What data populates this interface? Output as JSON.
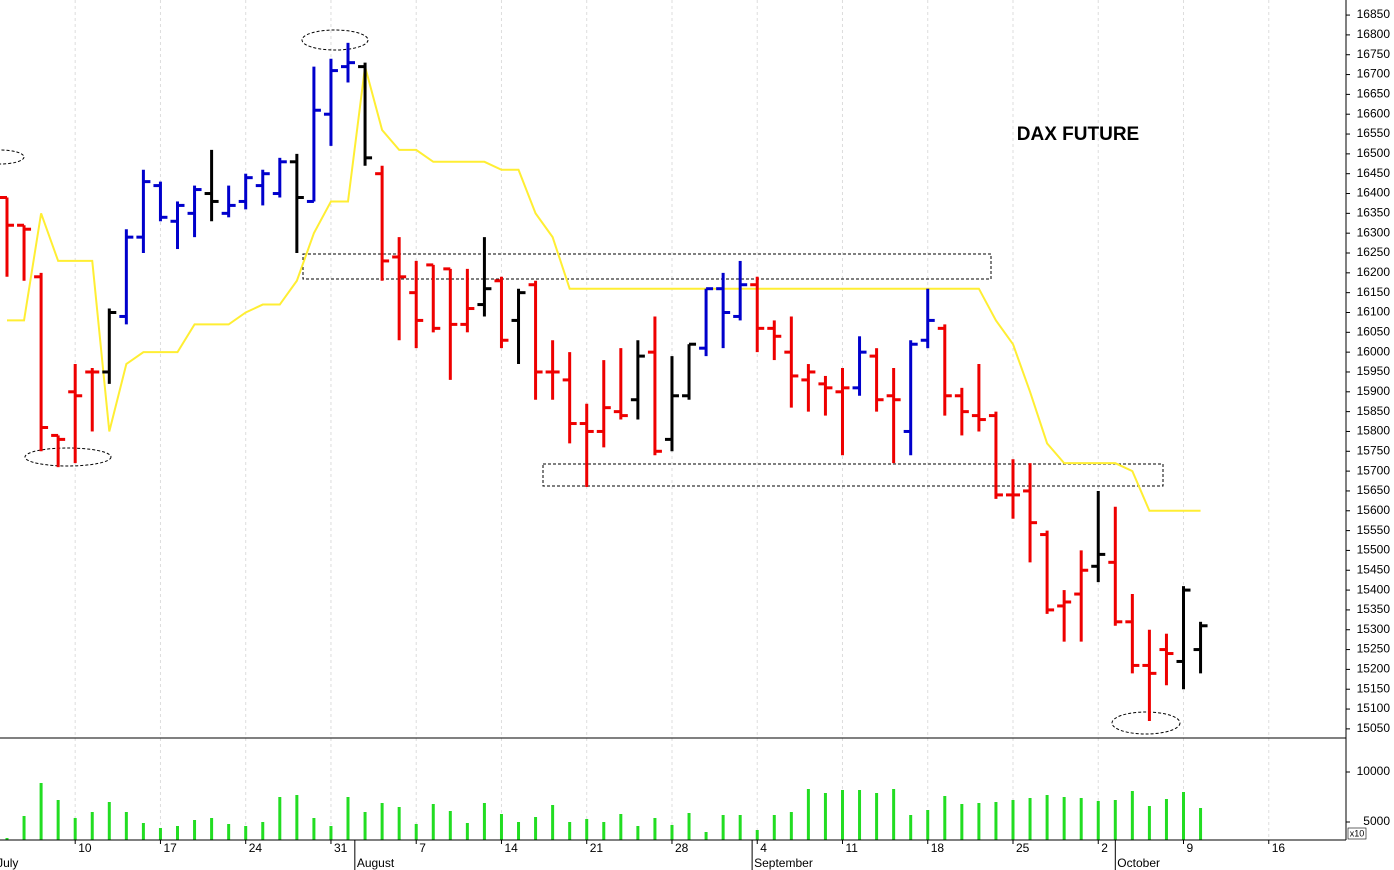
{
  "chart_data": {
    "type": "ohlc",
    "title": "DAX FUTURE",
    "x": [
      0,
      1,
      2,
      3,
      4,
      5,
      6,
      7,
      8,
      9,
      10,
      11,
      12,
      13,
      14,
      15,
      16,
      17,
      18,
      19,
      20,
      21,
      22,
      23,
      24,
      25,
      26,
      27,
      28,
      29,
      30,
      31,
      32,
      33,
      34,
      35,
      36,
      37,
      38,
      39,
      40,
      41,
      42,
      43,
      44,
      45,
      46,
      47,
      48,
      49,
      50,
      51,
      52,
      53,
      54,
      55,
      56,
      57,
      58,
      59,
      60,
      61,
      62,
      63,
      64,
      65,
      66,
      67,
      68,
      69,
      70
    ],
    "open": [
      16390,
      16320,
      16190,
      15790,
      15900,
      15950,
      15950,
      16090,
      16290,
      16420,
      16330,
      16350,
      16400,
      16350,
      16380,
      16420,
      16400,
      16480,
      16380,
      16600,
      16720,
      16720,
      16450,
      16240,
      16150,
      16220,
      16210,
      16070,
      16120,
      16180,
      16080,
      16170,
      15950,
      15930,
      15820,
      15800,
      15850,
      15880,
      16000,
      15780,
      15890,
      16010,
      16160,
      16090,
      16170,
      16060,
      16000,
      15930,
      15920,
      15900,
      15910,
      15990,
      15890,
      15800,
      16030,
      16060,
      15890,
      15840,
      15840,
      15640,
      15650,
      15540,
      15360,
      15390,
      15460,
      15470,
      15320,
      15210,
      15250,
      15220,
      15250
    ],
    "high": [
      16390,
      16320,
      16200,
      15790,
      15970,
      15960,
      16110,
      16310,
      16460,
      16430,
      16380,
      16420,
      16510,
      16420,
      16450,
      16460,
      16490,
      16500,
      16720,
      16740,
      16780,
      16730,
      16470,
      16290,
      16230,
      16220,
      16210,
      16210,
      16290,
      16190,
      16160,
      16180,
      16030,
      16000,
      15870,
      15980,
      16010,
      16030,
      16090,
      15990,
      16020,
      16160,
      16200,
      16230,
      16190,
      16080,
      16090,
      15970,
      15940,
      15960,
      16040,
      16010,
      15960,
      16030,
      16160,
      16070,
      15910,
      15970,
      15850,
      15730,
      15720,
      15550,
      15400,
      15500,
      15650,
      15610,
      15390,
      15300,
      15290,
      15410,
      15320
    ],
    "low": [
      16190,
      16180,
      15750,
      15710,
      15720,
      15800,
      15920,
      16070,
      16250,
      16330,
      16260,
      16290,
      16330,
      16340,
      16360,
      16370,
      16390,
      16250,
      16380,
      16520,
      16680,
      16470,
      16180,
      16030,
      16010,
      16050,
      15930,
      16050,
      16090,
      16010,
      15970,
      15880,
      15880,
      15770,
      15660,
      15760,
      15830,
      15830,
      15740,
      15750,
      15880,
      15990,
      16010,
      16080,
      16000,
      15980,
      15860,
      15850,
      15840,
      15740,
      15890,
      15850,
      15720,
      15740,
      16010,
      15840,
      15790,
      15800,
      15630,
      15580,
      15470,
      15340,
      15270,
      15270,
      15420,
      15310,
      15190,
      15070,
      15160,
      15150,
      15190
    ],
    "close": [
      16320,
      16310,
      15810,
      15780,
      15890,
      15950,
      16100,
      16290,
      16430,
      16340,
      16370,
      16410,
      16380,
      16370,
      16440,
      16450,
      16480,
      16390,
      16610,
      16710,
      16730,
      16490,
      16230,
      16190,
      16080,
      16060,
      16070,
      16110,
      16160,
      16030,
      16150,
      15950,
      15950,
      15820,
      15800,
      15860,
      15840,
      15990,
      15750,
      15890,
      16020,
      16160,
      16100,
      16170,
      16060,
      16040,
      15940,
      15950,
      15910,
      15910,
      16000,
      15880,
      15880,
      16020,
      16080,
      15890,
      15850,
      15830,
      15640,
      15640,
      15570,
      15350,
      15370,
      15450,
      15490,
      15320,
      15210,
      15190,
      15240,
      15400,
      15310
    ],
    "colors": [
      "#ee0000",
      "#ee0000",
      "#ee0000",
      "#ee0000",
      "#ee0000",
      "#ee0000",
      "#000000",
      "#0000cc",
      "#0000cc",
      "#0000cc",
      "#0000cc",
      "#0000cc",
      "#000000",
      "#0000cc",
      "#0000cc",
      "#0000cc",
      "#0000cc",
      "#000000",
      "#0000cc",
      "#0000cc",
      "#0000cc",
      "#000000",
      "#ee0000",
      "#ee0000",
      "#ee0000",
      "#ee0000",
      "#ee0000",
      "#ee0000",
      "#000000",
      "#ee0000",
      "#000000",
      "#ee0000",
      "#ee0000",
      "#ee0000",
      "#ee0000",
      "#ee0000",
      "#ee0000",
      "#000000",
      "#ee0000",
      "#000000",
      "#000000",
      "#0000cc",
      "#0000cc",
      "#0000cc",
      "#ee0000",
      "#ee0000",
      "#ee0000",
      "#ee0000",
      "#ee0000",
      "#ee0000",
      "#0000cc",
      "#ee0000",
      "#ee0000",
      "#0000cc",
      "#0000cc",
      "#ee0000",
      "#ee0000",
      "#ee0000",
      "#ee0000",
      "#ee0000",
      "#ee0000",
      "#ee0000",
      "#ee0000",
      "#ee0000",
      "#000000",
      "#ee0000",
      "#ee0000",
      "#ee0000",
      "#ee0000",
      "#000000",
      "#000000"
    ],
    "line": {
      "color": "#ffee33",
      "values": [
        16080,
        16080,
        16350,
        16230,
        16230,
        16230,
        15800,
        15970,
        16000,
        16000,
        16000,
        16070,
        16070,
        16070,
        16100,
        16120,
        16120,
        16180,
        16300,
        16380,
        16380,
        16720,
        16560,
        16510,
        16510,
        16480,
        16480,
        16480,
        16480,
        16460,
        16460,
        16350,
        16290,
        16160,
        16160,
        16160,
        16160,
        16160,
        16160,
        16160,
        16160,
        16160,
        16160,
        16160,
        16160,
        16160,
        16160,
        16160,
        16160,
        16160,
        16160,
        16160,
        16160,
        16160,
        16160,
        16160,
        16160,
        16160,
        16080,
        16020,
        15900,
        15770,
        15720,
        15720,
        15720,
        15720,
        15700,
        15600,
        15600,
        15600,
        15600
      ]
    },
    "volume": {
      "color": "#22dd22",
      "unit_label": "x10",
      "ylim": [
        3200,
        13400
      ],
      "yticks": [
        5000,
        10000
      ],
      "values": [
        3400,
        5600,
        8900,
        7200,
        5400,
        6000,
        7000,
        6000,
        4900,
        4400,
        4600,
        5200,
        5400,
        4800,
        4600,
        5000,
        7500,
        7700,
        5400,
        4600,
        7500,
        6000,
        6900,
        6500,
        4800,
        6800,
        6100,
        4900,
        6900,
        5800,
        5000,
        5500,
        6700,
        5000,
        5300,
        5000,
        5800,
        4600,
        5400,
        4700,
        5900,
        4000,
        5700,
        5700,
        4200,
        5700,
        6000,
        8300,
        7900,
        8200,
        8200,
        7900,
        8300,
        5700,
        6200,
        7600,
        6800,
        6900,
        7000,
        7200,
        7400,
        7700,
        7500,
        7400,
        7100,
        7200,
        8100,
        6600,
        7300,
        8000,
        6400
      ]
    },
    "xlim": [
      -0.41,
      78.53
    ],
    "ylim": [
      15027,
      16888
    ],
    "yticks": [
      15050,
      15100,
      15150,
      15200,
      15250,
      15300,
      15350,
      15400,
      15450,
      15500,
      15550,
      15600,
      15650,
      15700,
      15750,
      15800,
      15850,
      15900,
      15950,
      16000,
      16050,
      16100,
      16150,
      16200,
      16250,
      16300,
      16350,
      16400,
      16450,
      16500,
      16550,
      16600,
      16650,
      16700,
      16750,
      16800,
      16850
    ],
    "xticks": [
      {
        "value": 4,
        "label": "10"
      },
      {
        "value": 9,
        "label": "17"
      },
      {
        "value": 14,
        "label": "24"
      },
      {
        "value": 19,
        "label": "31"
      },
      {
        "value": 24,
        "label": "7"
      },
      {
        "value": 29,
        "label": "14"
      },
      {
        "value": 34,
        "label": "21"
      },
      {
        "value": 39,
        "label": "28"
      },
      {
        "value": 44,
        "label": "4"
      },
      {
        "value": 49,
        "label": "11"
      },
      {
        "value": 54,
        "label": "18"
      },
      {
        "value": 59,
        "label": "25"
      },
      {
        "value": 64,
        "label": "2"
      },
      {
        "value": 69,
        "label": "9"
      },
      {
        "value": 74,
        "label": "16"
      }
    ],
    "month_ticks": [
      {
        "value": -0.7,
        "label": "July"
      },
      {
        "value": 20.4,
        "label": "August"
      },
      {
        "value": 43.7,
        "label": "September"
      },
      {
        "value": 65,
        "label": "October"
      }
    ],
    "grid": true
  }
}
